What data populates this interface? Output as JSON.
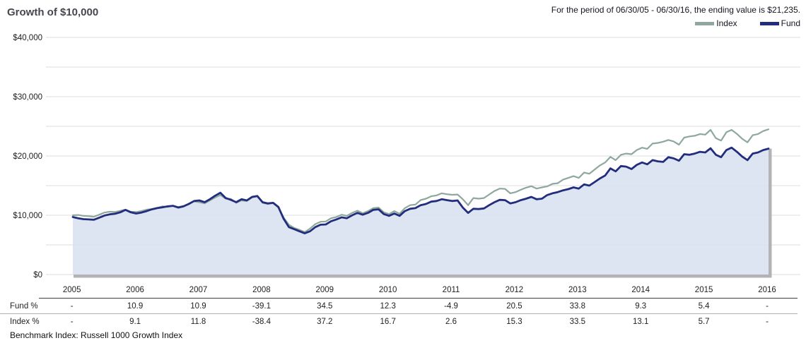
{
  "header": {
    "title": "Growth of $10,000",
    "period_note": "For the period of 06/30/05 - 06/30/16, the ending value is $21,235."
  },
  "legend": {
    "index_label": "Index",
    "fund_label": "Fund"
  },
  "colors": {
    "index_line": "#8ea89d",
    "fund_line": "#232d7d",
    "area_fill": "#d8e1f0",
    "gridline": "#dcdcdc",
    "axis_shadow": "#b3b3b6",
    "title_text": "#46464e"
  },
  "chart_data": {
    "type": "area",
    "title": "Growth of $10,000",
    "x_start": 2005.5,
    "x_end": 2016.5,
    "points_per_year": 12,
    "x_tick_labels": [
      "2005",
      "2006",
      "2007",
      "2008",
      "2009",
      "2010",
      "2011",
      "2012",
      "2013",
      "2014",
      "2015",
      "2016"
    ],
    "ylim": [
      0,
      40000
    ],
    "y_grid_interval": 5000,
    "y_label_interval": 10000,
    "y_tick_labels": [
      "$0",
      "$10,000",
      "$20,000",
      "$30,000",
      "$40,000"
    ],
    "grid": "horizontal",
    "legend_position": "top-right",
    "ending_value": 21235,
    "series": [
      {
        "name": "Index",
        "values": [
          10000,
          10050,
          9900,
          9850,
          9750,
          10100,
          10450,
          10600,
          10550,
          10750,
          10950,
          10600,
          10550,
          10700,
          10950,
          11050,
          11250,
          11500,
          11400,
          11600,
          11400,
          11550,
          11950,
          12350,
          12200,
          12000,
          12500,
          13000,
          13400,
          12800,
          12750,
          12100,
          12500,
          12400,
          13000,
          13200,
          12100,
          11900,
          12050,
          11300,
          9600,
          8400,
          7850,
          7550,
          7150,
          7750,
          8500,
          8900,
          8950,
          9500,
          9700,
          10100,
          9900,
          10400,
          10770,
          10350,
          10700,
          11200,
          11300,
          10500,
          10200,
          10700,
          10250,
          11200,
          11700,
          11800,
          12570,
          12800,
          13200,
          13350,
          13700,
          13550,
          13450,
          13500,
          12700,
          11700,
          12900,
          12800,
          12900,
          13500,
          14100,
          14500,
          14450,
          13700,
          13900,
          14300,
          14650,
          14900,
          14500,
          14700,
          14870,
          15300,
          15400,
          16000,
          16300,
          16600,
          16300,
          17200,
          17000,
          17700,
          18400,
          18900,
          19850,
          19300,
          20200,
          20400,
          20300,
          21000,
          21400,
          21200,
          22100,
          22200,
          22400,
          22700,
          22450,
          21900,
          23100,
          23300,
          23400,
          23700,
          23600,
          24400,
          23000,
          22600,
          24000,
          24400,
          23730,
          22900,
          22300,
          23500,
          23700,
          24200,
          24500
        ]
      },
      {
        "name": "Fund",
        "area": true,
        "values": [
          9700,
          9500,
          9350,
          9300,
          9250,
          9600,
          9950,
          10150,
          10250,
          10500,
          10900,
          10500,
          10300,
          10450,
          10700,
          11000,
          11200,
          11350,
          11500,
          11600,
          11300,
          11500,
          11900,
          12400,
          12500,
          12200,
          12700,
          13300,
          13800,
          12900,
          12600,
          12200,
          12700,
          12500,
          13100,
          13250,
          12200,
          12000,
          12100,
          11400,
          9400,
          8000,
          7650,
          7300,
          6950,
          7300,
          8000,
          8400,
          8450,
          9000,
          9300,
          9650,
          9500,
          10000,
          10400,
          10100,
          10400,
          10900,
          11000,
          10200,
          9900,
          10300,
          9900,
          10700,
          11100,
          11200,
          11700,
          11900,
          12300,
          12400,
          12700,
          12550,
          12400,
          12500,
          11300,
          10400,
          11100,
          11050,
          11150,
          11700,
          12200,
          12600,
          12550,
          12000,
          12200,
          12550,
          12800,
          13100,
          12700,
          12800,
          13400,
          13700,
          13900,
          14200,
          14400,
          14700,
          14500,
          15200,
          15000,
          15600,
          16200,
          16700,
          17900,
          17400,
          18300,
          18200,
          17800,
          18500,
          18900,
          18600,
          19300,
          19100,
          19000,
          19800,
          19600,
          19200,
          20300,
          20200,
          20400,
          20700,
          20600,
          21300,
          20200,
          19800,
          21000,
          21400,
          20700,
          19900,
          19300,
          20400,
          20600,
          21000,
          21235
        ]
      }
    ]
  },
  "table": {
    "years": [
      "2005",
      "2006",
      "2007",
      "2008",
      "2009",
      "2010",
      "2011",
      "2012",
      "2013",
      "2014",
      "2015",
      "2016"
    ],
    "rows": [
      {
        "label": "Fund %",
        "values": [
          "-",
          "10.9",
          "10.9",
          "-39.1",
          "34.5",
          "12.3",
          "-4.9",
          "20.5",
          "33.8",
          "9.3",
          "5.4",
          "-"
        ]
      },
      {
        "label": "Index %",
        "values": [
          "-",
          "9.1",
          "11.8",
          "-38.4",
          "37.2",
          "16.7",
          "2.6",
          "15.3",
          "33.5",
          "13.1",
          "5.7",
          "-"
        ]
      }
    ],
    "footnote": "Benchmark Index: Russell 1000 Growth Index"
  }
}
